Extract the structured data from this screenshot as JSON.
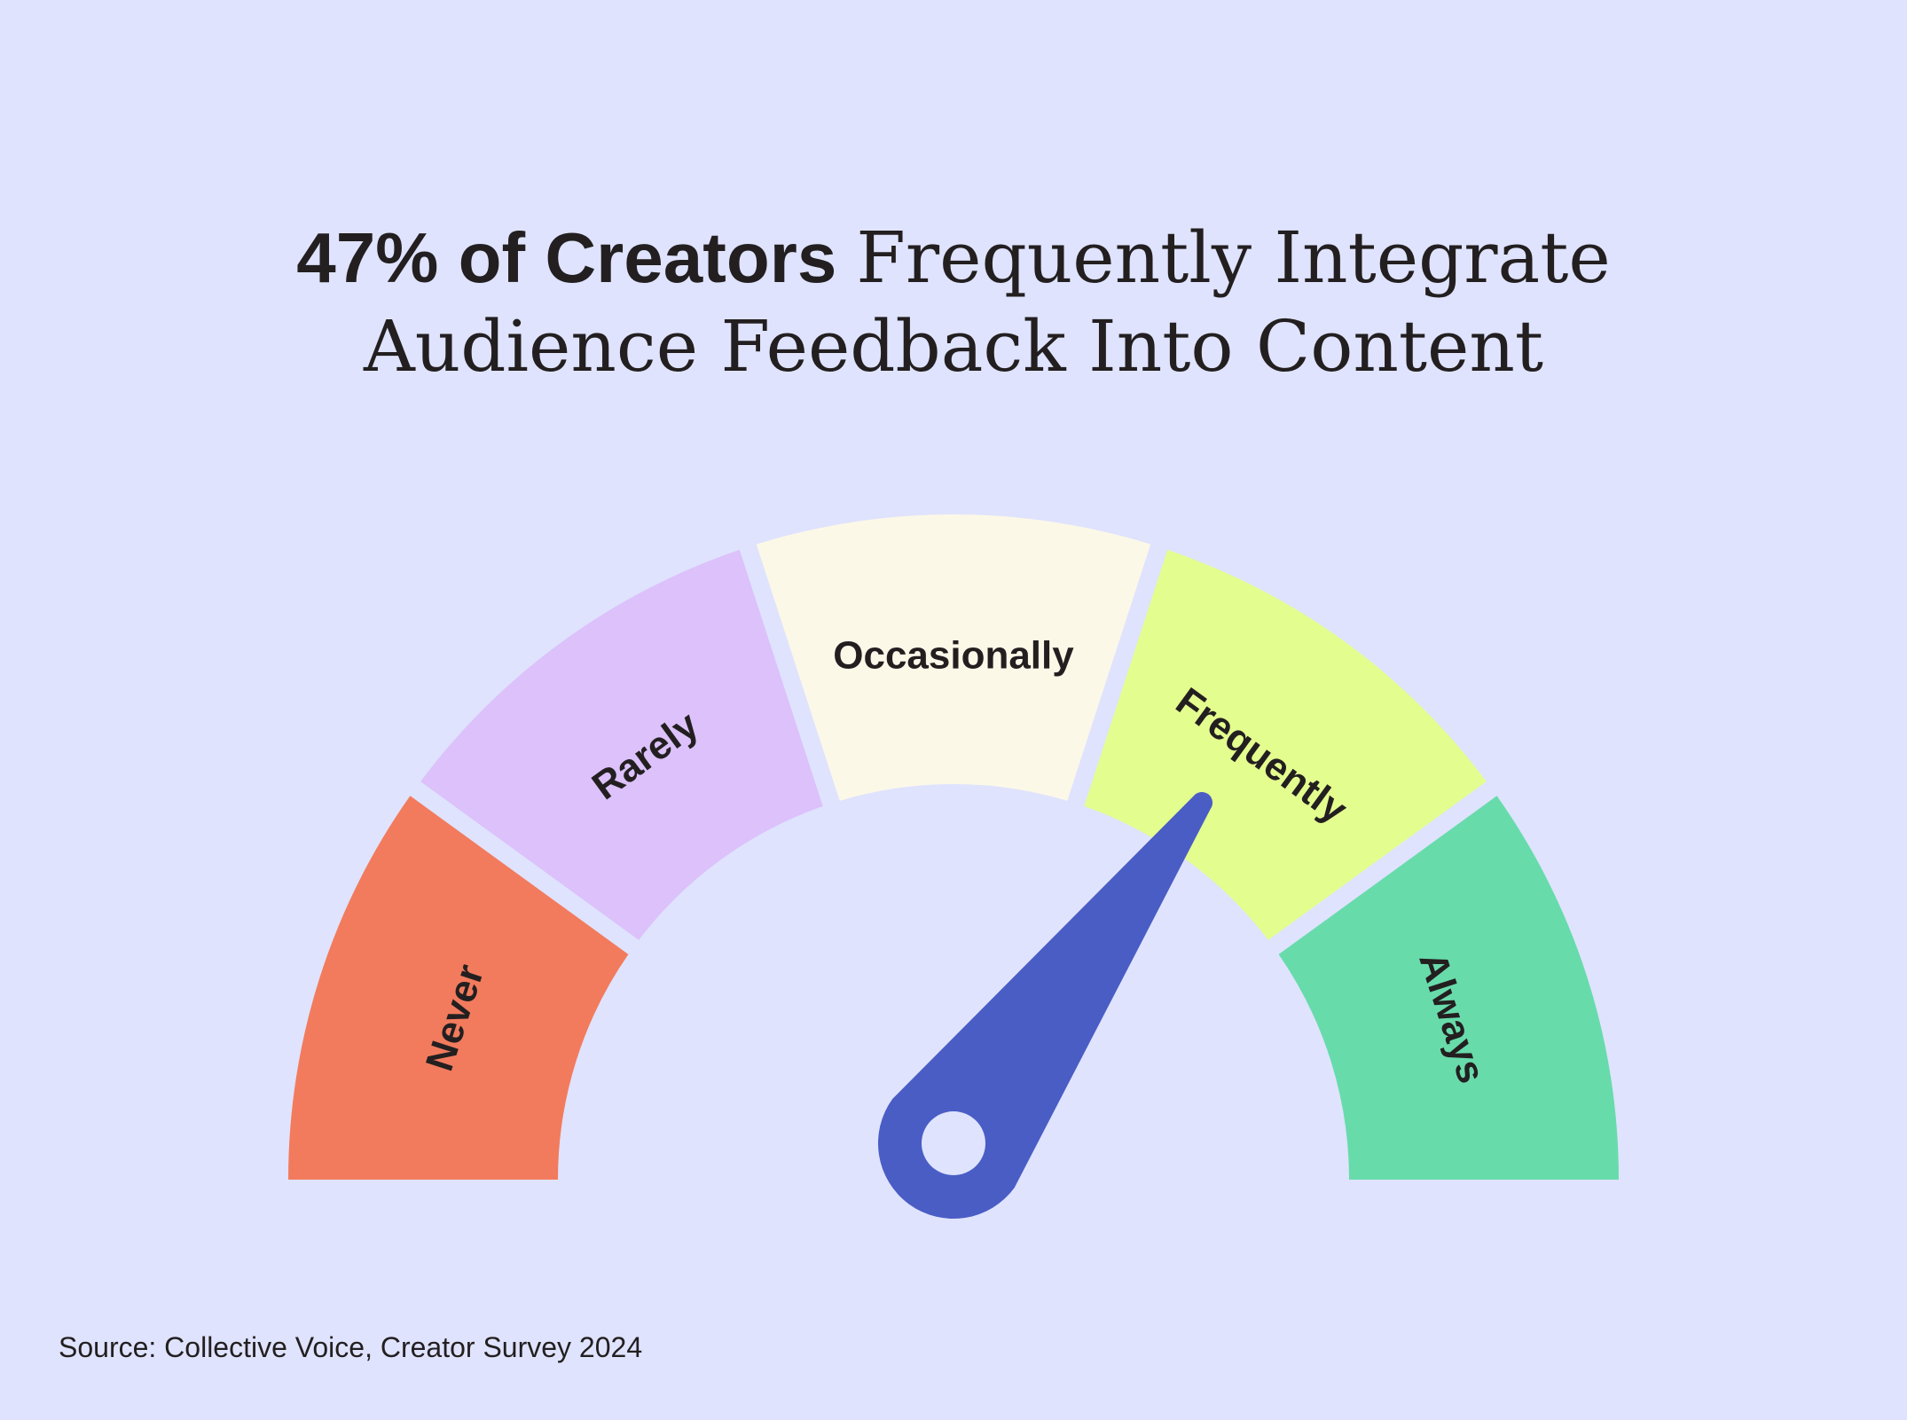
{
  "chart_data": {
    "type": "gauge",
    "title_bold": "47% of Creators",
    "title_lines": [
      "Frequently Integrate",
      "Audience Feedback Into Content"
    ],
    "categories": [
      "Never",
      "Rarely",
      "Occasionally",
      "Frequently",
      "Always"
    ],
    "colors": [
      "#f27b5d",
      "#dcc1fb",
      "#fcf8e8",
      "#e4fd8f",
      "#68dbab"
    ],
    "source": "Source: Collective Voice, Creator Survey 2024"
  }
}
